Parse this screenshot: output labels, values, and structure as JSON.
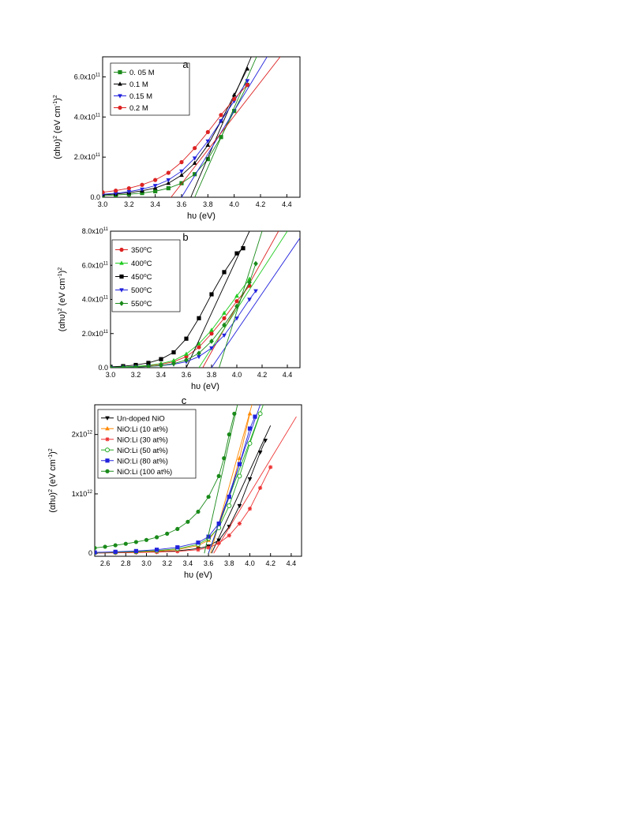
{
  "chart_data": [
    {
      "type": "scatter",
      "panel": "a",
      "xlabel": "hυ (eV)",
      "ylabel": "(αhυ)² (eV cm⁻¹)²",
      "xlim": [
        3.0,
        4.5
      ],
      "ylim": [
        0,
        700000000000.0
      ],
      "xticks": [
        3.0,
        3.2,
        3.4,
        3.6,
        3.8,
        4.0,
        4.2,
        4.4
      ],
      "xtick_labels": [
        "3.0",
        "3.2",
        "3.4",
        "3.6",
        "3.8",
        "4.0",
        "4.2",
        "4.4"
      ],
      "yticks": [
        0,
        200000000000.0,
        400000000000.0,
        600000000000.0
      ],
      "ytick_labels": [
        {
          "base": "0.0",
          "exp": ""
        },
        {
          "base": "2.0x10",
          "exp": "11"
        },
        {
          "base": "4.0x10",
          "exp": "11"
        },
        {
          "base": "6.0x10",
          "exp": "11"
        }
      ],
      "legend_position": "top-left",
      "series": [
        {
          "name": "0. 05 M",
          "color": "#1a8a1a",
          "marker": "square",
          "x": [
            3.0,
            3.1,
            3.2,
            3.3,
            3.4,
            3.5,
            3.6,
            3.7,
            3.8,
            3.9,
            4.0,
            4.1
          ],
          "y": [
            8000000000.0,
            11000000000.0,
            15000000000.0,
            21000000000.0,
            30000000000.0,
            45000000000.0,
            70000000000.0,
            115000000000.0,
            190000000000.0,
            300000000000.0,
            430000000000.0,
            560000000000.0
          ],
          "fit": [
            [
              3.7,
              0
            ],
            [
              4.17,
              700000000000.0
            ]
          ]
        },
        {
          "name": "0.1   M",
          "color": "#000000",
          "marker": "triangle-up",
          "x": [
            3.0,
            3.1,
            3.2,
            3.3,
            3.4,
            3.5,
            3.6,
            3.7,
            3.8,
            3.9,
            4.0,
            4.1
          ],
          "y": [
            12000000000.0,
            16000000000.0,
            22000000000.0,
            32000000000.0,
            46000000000.0,
            70000000000.0,
            110000000000.0,
            170000000000.0,
            260000000000.0,
            380000000000.0,
            510000000000.0,
            640000000000.0
          ],
          "fit": [
            [
              3.67,
              0
            ],
            [
              4.13,
              700000000000.0
            ]
          ]
        },
        {
          "name": "0.15  M",
          "color": "#2222dd",
          "marker": "triangle-down",
          "x": [
            3.0,
            3.1,
            3.2,
            3.3,
            3.4,
            3.5,
            3.6,
            3.7,
            3.8,
            3.9,
            4.0,
            4.1
          ],
          "y": [
            15000000000.0,
            20000000000.0,
            28000000000.0,
            40000000000.0,
            58000000000.0,
            86000000000.0,
            130000000000.0,
            195000000000.0,
            280000000000.0,
            380000000000.0,
            480000000000.0,
            580000000000.0
          ],
          "fit": [
            [
              3.6,
              0
            ],
            [
              4.25,
              700000000000.0
            ]
          ]
        },
        {
          "name": "0.2    M",
          "color": "#dd2222",
          "marker": "circle",
          "x": [
            3.0,
            3.1,
            3.2,
            3.3,
            3.4,
            3.5,
            3.6,
            3.7,
            3.8,
            3.9,
            4.0,
            4.1
          ],
          "y": [
            25000000000.0,
            33000000000.0,
            45000000000.0,
            62000000000.0,
            86000000000.0,
            122000000000.0,
            175000000000.0,
            245000000000.0,
            325000000000.0,
            410000000000.0,
            490000000000.0,
            560000000000.0
          ],
          "fit": [
            [
              3.52,
              0
            ],
            [
              4.35,
              700000000000.0
            ]
          ]
        }
      ]
    },
    {
      "type": "scatter",
      "panel": "b",
      "xlabel": "hυ (eV)",
      "ylabel": "(αhυ)² (eV cm⁻¹)²",
      "xlim": [
        3.0,
        4.5
      ],
      "ylim": [
        0,
        800000000000.0
      ],
      "xticks": [
        3.0,
        3.2,
        3.4,
        3.6,
        3.8,
        4.0,
        4.2,
        4.4
      ],
      "xtick_labels": [
        "3.0",
        "3.2",
        "3.4",
        "3.6",
        "3.8",
        "4.0",
        "4.2",
        "4.4"
      ],
      "yticks": [
        0,
        200000000000.0,
        400000000000.0,
        600000000000.0,
        800000000000.0
      ],
      "ytick_labels": [
        {
          "base": "0.0",
          "exp": ""
        },
        {
          "base": "2.0x10",
          "exp": "11"
        },
        {
          "base": "4.0x10",
          "exp": "11"
        },
        {
          "base": "6.0x10",
          "exp": "11"
        },
        {
          "base": "8.0x10",
          "exp": "11"
        }
      ],
      "legend_position": "top-left",
      "series": [
        {
          "name": "350⁰C",
          "color": "#dd2222",
          "marker": "circle",
          "x": [
            3.0,
            3.1,
            3.2,
            3.3,
            3.4,
            3.5,
            3.6,
            3.7,
            3.8,
            3.9,
            4.0,
            4.1
          ],
          "y": [
            2000000000.0,
            4000000000.0,
            7000000000.0,
            12000000000.0,
            20000000000.0,
            35000000000.0,
            65000000000.0,
            120000000000.0,
            200000000000.0,
            290000000000.0,
            390000000000.0,
            480000000000.0
          ],
          "fit": [
            [
              3.73,
              0
            ],
            [
              4.33,
              800000000000.0
            ]
          ]
        },
        {
          "name": "400⁰C",
          "color": "#22cc22",
          "marker": "triangle-up",
          "x": [
            3.0,
            3.1,
            3.2,
            3.3,
            3.4,
            3.5,
            3.6,
            3.7,
            3.8,
            3.9,
            4.0,
            4.1
          ],
          "y": [
            3000000000.0,
            5000000000.0,
            8000000000.0,
            14000000000.0,
            24000000000.0,
            42000000000.0,
            80000000000.0,
            140000000000.0,
            220000000000.0,
            320000000000.0,
            420000000000.0,
            520000000000.0
          ],
          "fit": [
            [
              3.7,
              0
            ],
            [
              4.4,
              800000000000.0
            ]
          ]
        },
        {
          "name": "450⁰C",
          "color": "#000000",
          "marker": "square",
          "x": [
            3.0,
            3.1,
            3.2,
            3.3,
            3.4,
            3.5,
            3.6,
            3.7,
            3.8,
            3.9,
            4.0,
            4.05
          ],
          "y": [
            5000000000.0,
            9000000000.0,
            16000000000.0,
            28000000000.0,
            50000000000.0,
            90000000000.0,
            170000000000.0,
            290000000000.0,
            430000000000.0,
            560000000000.0,
            670000000000.0,
            700000000000.0
          ],
          "fit": [
            [
              3.6,
              0
            ],
            [
              4.1,
              800000000000.0
            ]
          ]
        },
        {
          "name": "500⁰C",
          "color": "#2222dd",
          "marker": "triangle-down",
          "x": [
            3.0,
            3.1,
            3.2,
            3.3,
            3.4,
            3.5,
            3.6,
            3.7,
            3.8,
            3.9,
            4.0,
            4.1,
            4.15
          ],
          "y": [
            1000000000.0,
            2000000000.0,
            4000000000.0,
            7000000000.0,
            12000000000.0,
            20000000000.0,
            35000000000.0,
            65000000000.0,
            115000000000.0,
            190000000000.0,
            290000000000.0,
            400000000000.0,
            450000000000.0
          ],
          "fit": [
            [
              3.8,
              0
            ],
            [
              4.5,
              760000000000.0
            ]
          ]
        },
        {
          "name": "550⁰C",
          "color": "#1a8a1a",
          "marker": "diamond",
          "x": [
            3.0,
            3.1,
            3.2,
            3.3,
            3.4,
            3.5,
            3.6,
            3.7,
            3.8,
            3.9,
            4.0,
            4.1,
            4.15
          ],
          "y": [
            1000000000.0,
            2000000000.0,
            4000000000.0,
            7000000000.0,
            13000000000.0,
            24000000000.0,
            45000000000.0,
            85000000000.0,
            155000000000.0,
            250000000000.0,
            360000000000.0,
            500000000000.0,
            610000000000.0
          ],
          "fit": [
            [
              3.86,
              0
            ],
            [
              4.2,
              800000000000.0
            ]
          ]
        }
      ]
    },
    {
      "type": "scatter",
      "panel": "c",
      "xlabel": "hυ (eV)",
      "ylabel": "(αhυ)² (eV cm⁻¹)²",
      "xlim": [
        2.5,
        4.5
      ],
      "ylim": [
        -50000000000.0,
        2500000000000.0
      ],
      "xticks": [
        2.6,
        2.8,
        3.0,
        3.2,
        3.4,
        3.6,
        3.8,
        4.0,
        4.2,
        4.4
      ],
      "xtick_labels": [
        "2.6",
        "2.8",
        "3.0",
        "3.2",
        "3.4",
        "3.6",
        "3.8",
        "4.0",
        "4.2",
        "4.4"
      ],
      "yticks": [
        0,
        1000000000000.0,
        2000000000000.0
      ],
      "ytick_labels": [
        {
          "base": "0",
          "exp": ""
        },
        {
          "base": "1x10",
          "exp": "12"
        },
        {
          "base": "2x10",
          "exp": "12"
        }
      ],
      "legend_position": "top-left",
      "series": [
        {
          "name": "Un-doped NiO",
          "color": "#000000",
          "marker": "triangle-down",
          "x": [
            2.5,
            2.7,
            2.9,
            3.1,
            3.3,
            3.5,
            3.6,
            3.7,
            3.8,
            3.9,
            4.0,
            4.1,
            4.15
          ],
          "y": [
            5000000000.0,
            10000000000.0,
            15000000000.0,
            25000000000.0,
            40000000000.0,
            80000000000.0,
            120000000000.0,
            220000000000.0,
            450000000000.0,
            800000000000.0,
            1250000000000.0,
            1700000000000.0,
            1900000000000.0
          ],
          "fit": [
            [
              3.63,
              0
            ],
            [
              4.2,
              2150000000000.0
            ]
          ]
        },
        {
          "name": "NiO:Li (10 at%)",
          "color": "#ff8800",
          "marker": "triangle-up",
          "x": [
            2.5,
            2.7,
            2.9,
            3.1,
            3.3,
            3.5,
            3.6,
            3.7,
            3.8,
            3.9,
            4.0
          ],
          "y": [
            8000000000.0,
            15000000000.0,
            23000000000.0,
            36000000000.0,
            60000000000.0,
            130000000000.0,
            220000000000.0,
            450000000000.0,
            950000000000.0,
            1600000000000.0,
            2350000000000.0
          ],
          "fit": [
            [
              3.62,
              0
            ],
            [
              4.02,
              2500000000000.0
            ]
          ]
        },
        {
          "name": "NiO:Li (30 at%)",
          "color": "#ee3333",
          "marker": "asterisk",
          "x": [
            2.5,
            2.7,
            2.9,
            3.1,
            3.3,
            3.5,
            3.6,
            3.7,
            3.8,
            3.9,
            4.0,
            4.1,
            4.2
          ],
          "y": [
            5000000000.0,
            8000000000.0,
            12000000000.0,
            20000000000.0,
            32000000000.0,
            60000000000.0,
            95000000000.0,
            170000000000.0,
            300000000000.0,
            500000000000.0,
            750000000000.0,
            1100000000000.0,
            1450000000000.0
          ],
          "fit": [
            [
              3.65,
              0
            ],
            [
              4.45,
              2300000000000.0
            ]
          ]
        },
        {
          "name": "NiO:Li (50 at%)",
          "color": "#22aa22",
          "marker": "open-circle",
          "x": [
            2.5,
            2.7,
            2.9,
            3.1,
            3.3,
            3.5,
            3.6,
            3.7,
            3.8,
            3.9,
            4.0,
            4.1
          ],
          "y": [
            10000000000.0,
            18000000000.0,
            28000000000.0,
            45000000000.0,
            75000000000.0,
            150000000000.0,
            250000000000.0,
            430000000000.0,
            800000000000.0,
            1300000000000.0,
            1850000000000.0,
            2350000000000.0
          ],
          "fit": [
            [
              3.6,
              0
            ],
            [
              4.13,
              2500000000000.0
            ]
          ]
        },
        {
          "name": "NiO:Li (80 at%)",
          "color": "#2222dd",
          "marker": "square",
          "x": [
            2.5,
            2.7,
            2.9,
            3.1,
            3.3,
            3.5,
            3.6,
            3.7,
            3.8,
            3.9,
            4.0,
            4.05
          ],
          "y": [
            15000000000.0,
            25000000000.0,
            38000000000.0,
            60000000000.0,
            100000000000.0,
            180000000000.0,
            280000000000.0,
            500000000000.0,
            950000000000.0,
            1500000000000.0,
            2100000000000.0,
            2300000000000.0
          ],
          "fit": [
            [
              3.6,
              0
            ],
            [
              4.1,
              2500000000000.0
            ]
          ]
        },
        {
          "name": "NiO:Li (100 at%)",
          "color": "#1a8a1a",
          "marker": "circle",
          "x": [
            2.5,
            2.6,
            2.7,
            2.8,
            2.9,
            3.0,
            3.1,
            3.2,
            3.3,
            3.4,
            3.5,
            3.6,
            3.7,
            3.75,
            3.8,
            3.85
          ],
          "y": [
            90000000000.0,
            110000000000.0,
            135000000000.0,
            160000000000.0,
            190000000000.0,
            225000000000.0,
            270000000000.0,
            330000000000.0,
            410000000000.0,
            530000000000.0,
            700000000000.0,
            950000000000.0,
            1300000000000.0,
            1600000000000.0,
            2000000000000.0,
            2350000000000.0
          ],
          "fit": [
            [
              3.56,
              0
            ],
            [
              3.88,
              2500000000000.0
            ]
          ]
        }
      ]
    }
  ]
}
